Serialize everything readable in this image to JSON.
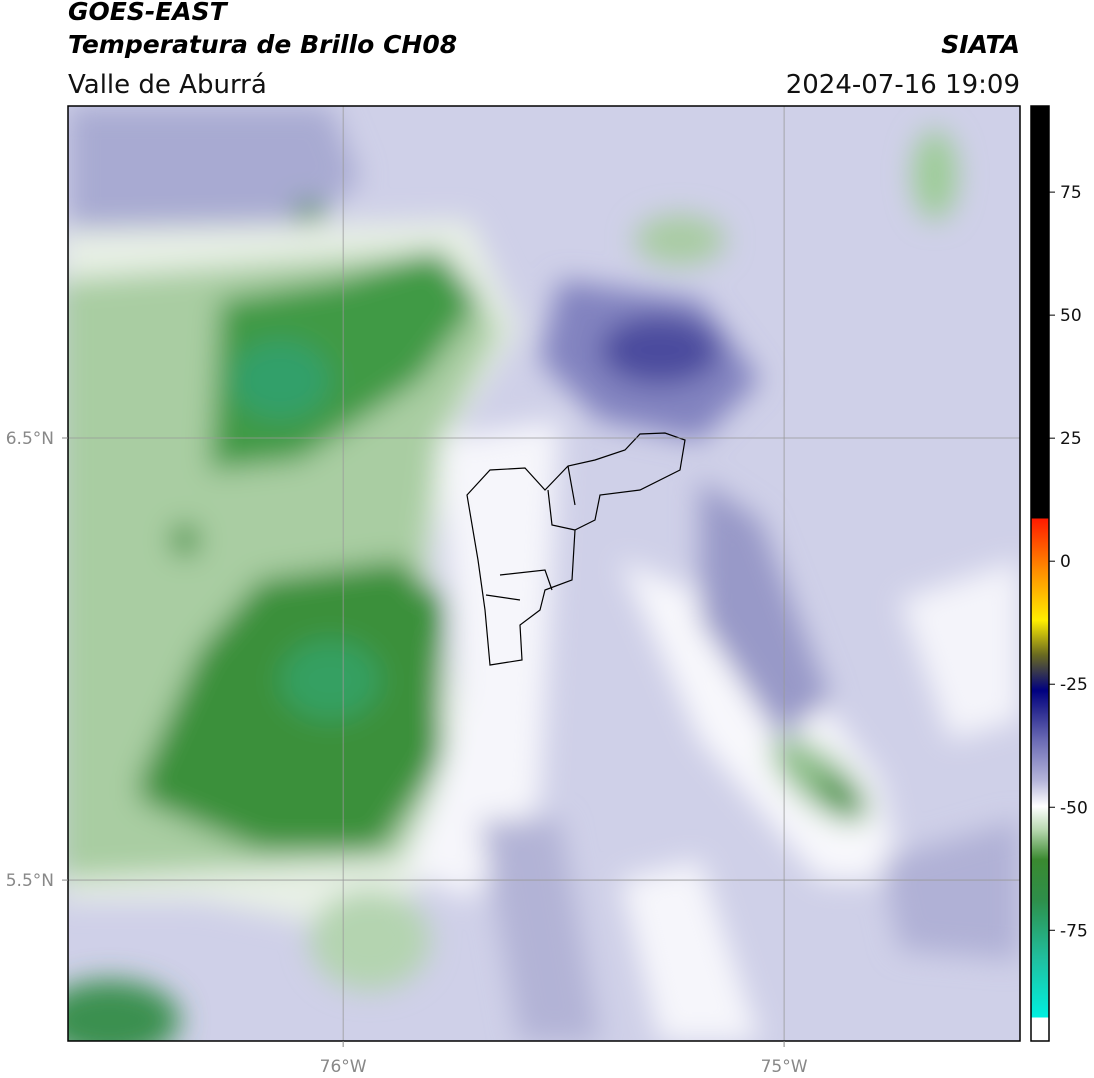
{
  "header": {
    "title": "GOES-EAST",
    "subtitle": "Temperatura de Brillo CH08",
    "source": "SIATA",
    "region": "Valle de Aburrá",
    "datetime": "2024-07-16 19:09"
  },
  "map": {
    "lonlim": [
      -76.624,
      -74.465
    ],
    "latlim": [
      5.136,
      7.251
    ],
    "xticks": [
      {
        "value": -76,
        "label": "76°W"
      },
      {
        "value": -75,
        "label": "75°W"
      }
    ],
    "yticks": [
      {
        "value": 6.5,
        "label": "6.5°N"
      },
      {
        "value": 5.5,
        "label": "5.5°N"
      }
    ]
  },
  "colorbar": {
    "lim": [
      -97.5,
      92.5
    ],
    "ticks": [
      75,
      50,
      25,
      0,
      -25,
      -50,
      -75
    ]
  }
}
